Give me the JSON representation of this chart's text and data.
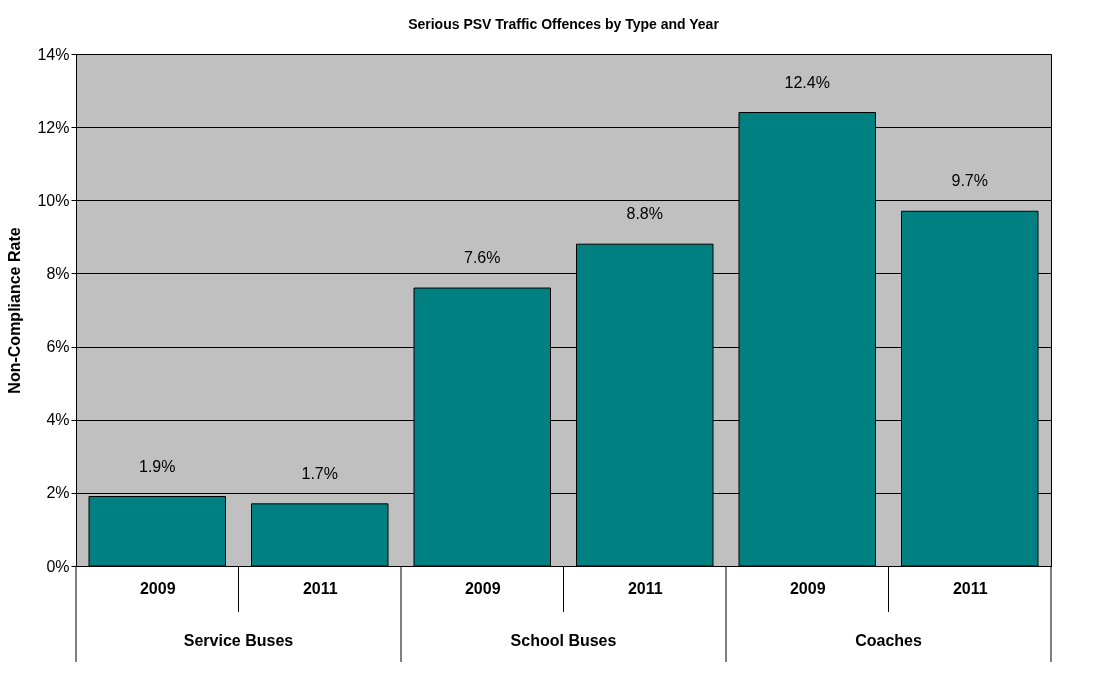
{
  "chart_data": {
    "type": "bar",
    "title": "Serious PSV Traffic Offences by Type and Year",
    "ylabel": "Non-Compliance Rate",
    "categories": [
      "2009",
      "2011",
      "2009",
      "2011",
      "2009",
      "2011"
    ],
    "values": [
      1.9,
      1.7,
      7.6,
      8.8,
      12.4,
      9.7
    ],
    "value_labels": [
      "1.9%",
      "1.7%",
      "7.6%",
      "8.8%",
      "12.4%",
      "9.7%"
    ],
    "color": "#008080",
    "ylim": [
      0,
      14
    ],
    "yticks": [
      {
        "value": 0,
        "label": "0%"
      },
      {
        "value": 2,
        "label": "2%"
      },
      {
        "value": 4,
        "label": "4%"
      },
      {
        "value": 6,
        "label": "6%"
      },
      {
        "value": 8,
        "label": "8%"
      },
      {
        "value": 10,
        "label": "10%"
      },
      {
        "value": 12,
        "label": "12%"
      },
      {
        "value": 14,
        "label": "14%"
      }
    ],
    "annotations": [
      "Service Buses",
      "School Buses",
      "Coaches"
    ],
    "grid": "y",
    "legend": false
  }
}
